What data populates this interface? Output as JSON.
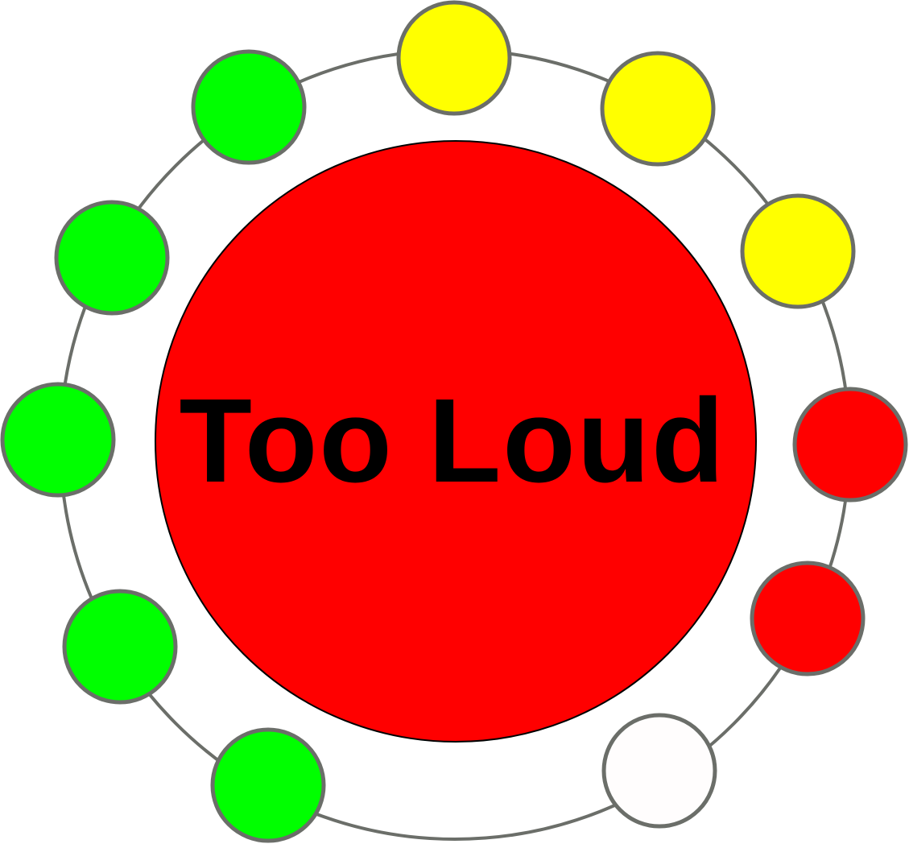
{
  "status_label": "Too Loud",
  "colors": {
    "green": "#00ff00",
    "yellow": "#ffff00",
    "red": "#ff0000",
    "off": "#fffdfd",
    "ring": "#6b6e69",
    "center": "#ff0000",
    "text": "#000000"
  },
  "indicators": [
    {
      "level": 1,
      "state": "green"
    },
    {
      "level": 2,
      "state": "green"
    },
    {
      "level": 3,
      "state": "green"
    },
    {
      "level": 4,
      "state": "green"
    },
    {
      "level": 5,
      "state": "green"
    },
    {
      "level": 6,
      "state": "yellow"
    },
    {
      "level": 7,
      "state": "yellow"
    },
    {
      "level": 8,
      "state": "yellow"
    },
    {
      "level": 9,
      "state": "red"
    },
    {
      "level": 10,
      "state": "red"
    },
    {
      "level": 11,
      "state": "off"
    }
  ]
}
